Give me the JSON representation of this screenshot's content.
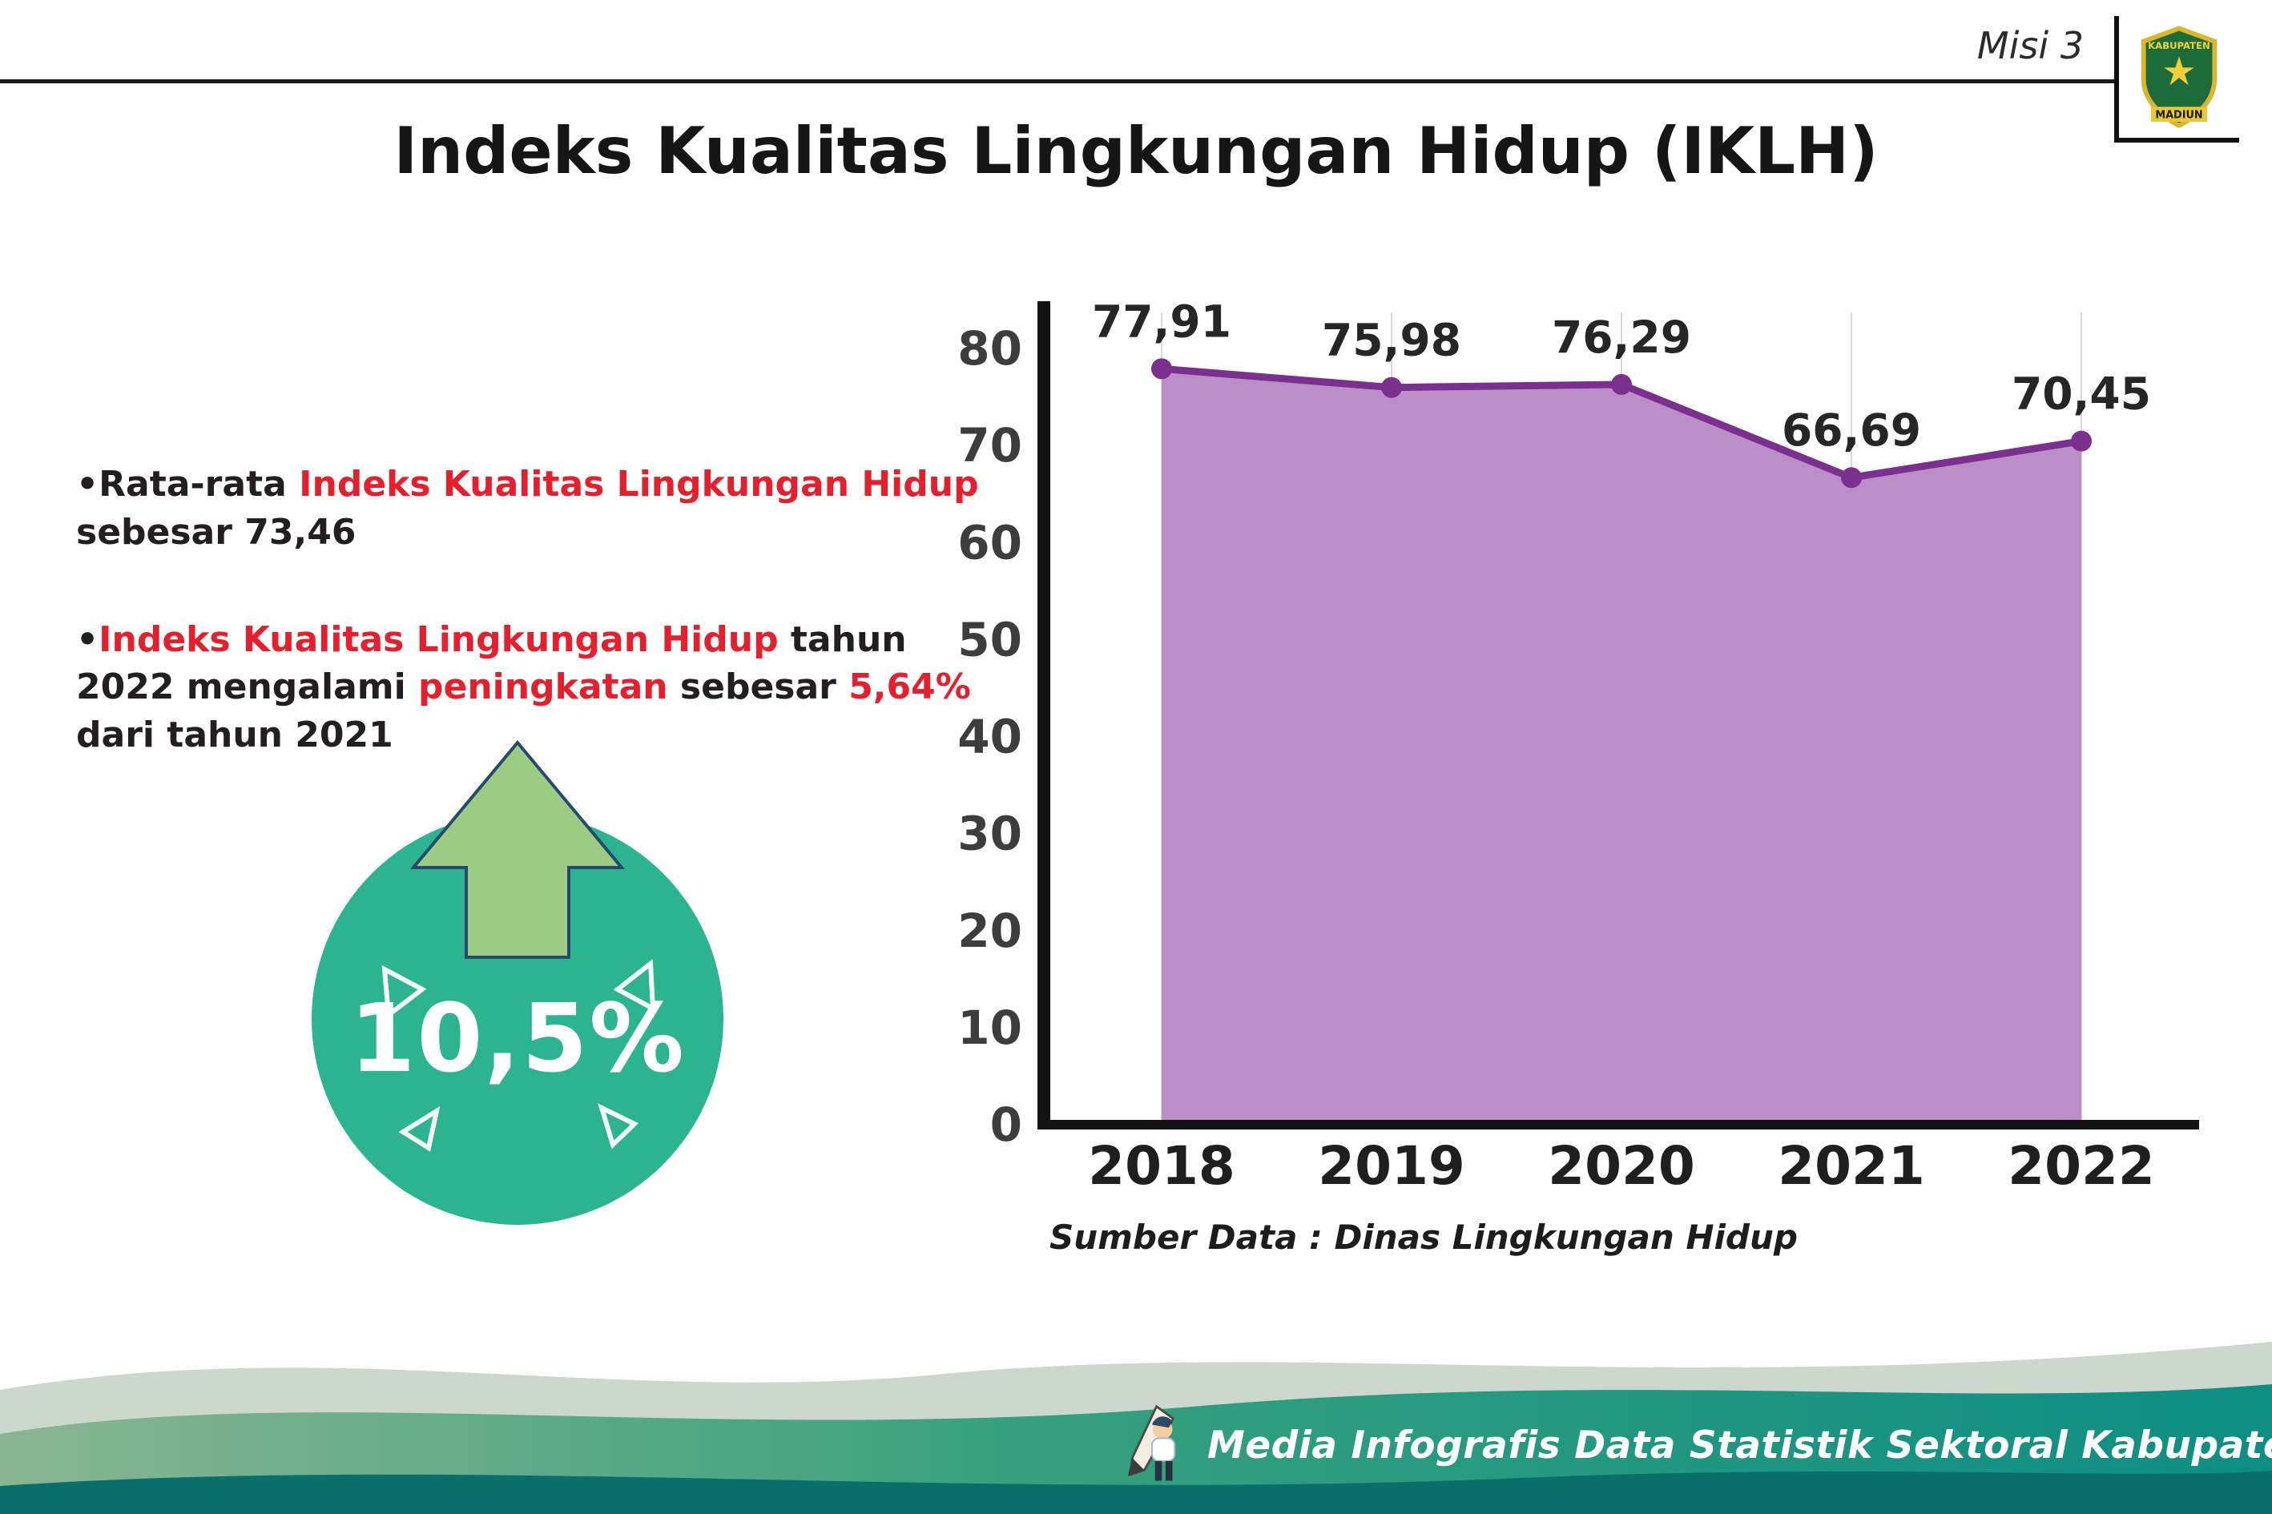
{
  "header": {
    "misi_label": "Misi 3",
    "title": "Indeks Kualitas Lingkungan Hidup (IKLH)"
  },
  "logo": {
    "line1": "KABUPATEN",
    "line2": "MADIUN"
  },
  "bullets": {
    "bullet_char": "•",
    "b1": {
      "seg1": "Rata-rata ",
      "seg2": "Indeks Kualitas Lingkungan Hidup",
      "seg3": " sebesar 73,46"
    },
    "b2": {
      "seg1": "Indeks Kualitas Lingkungan Hidup",
      "seg2": " tahun 2022 mengalami ",
      "seg3": "peningkatan",
      "seg4": " sebesar ",
      "seg5": "5,64%",
      "seg6": " dari tahun 2021"
    }
  },
  "badge": {
    "value": "10,5%"
  },
  "chart_data": {
    "type": "area",
    "categories": [
      "2018",
      "2019",
      "2020",
      "2021",
      "2022"
    ],
    "values": [
      77.91,
      75.98,
      76.29,
      66.69,
      70.45
    ],
    "point_labels": [
      "77,91",
      "75,98",
      "76,29",
      "66,69",
      "70,45"
    ],
    "title": "Indeks Kualitas Lingkungan Hidup (IKLH)",
    "xlabel": "",
    "ylabel": "",
    "ylim": [
      0,
      80
    ],
    "yticks": [
      0,
      10,
      20,
      30,
      40,
      50,
      60,
      70,
      80
    ],
    "grid": "vertical-light",
    "legend": "none",
    "line_color": "#7b2f8e",
    "fill_color": "#bc8ec7",
    "source": "Sumber Data : Dinas Lingkungan Hidup"
  },
  "footer": {
    "text": "Media Infografis Data Statistik Sektoral Kabupaten Madiun |"
  },
  "colors": {
    "accent_red": "#e4202e",
    "badge_teal": "#2cb390",
    "arrow_green": "#9ccb83",
    "area_purple": "#bc8ec7",
    "line_purple": "#7b2f8e",
    "footer_teal_dark": "#0a6f6b"
  }
}
